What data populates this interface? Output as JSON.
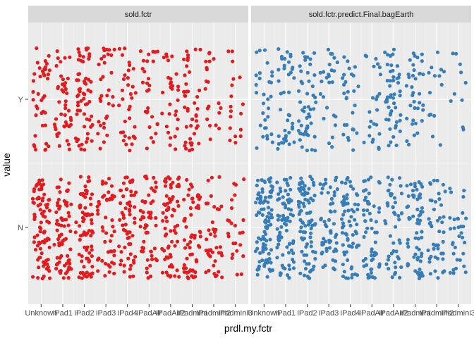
{
  "chart_data": {
    "type": "scatter",
    "jitter": true,
    "xlabel": "prdl.my.fctr",
    "ylabel": "value",
    "categories": [
      "Unknown",
      "iPad1",
      "iPad2",
      "iPad3",
      "iPad4",
      "iPadAir",
      "iPadAir2",
      "iPadmini",
      "iPadmini2",
      "iPadmini3"
    ],
    "y_levels": [
      "N",
      "Y"
    ],
    "grid": true,
    "facets": [
      {
        "label": "sold.fctr",
        "color": "#E41A1C",
        "counts": {
          "Y": [
            40,
            45,
            60,
            32,
            34,
            28,
            30,
            42,
            20,
            18
          ],
          "N": [
            85,
            70,
            75,
            48,
            60,
            52,
            65,
            58,
            40,
            24
          ]
        }
      },
      {
        "label": "sold.fctr.predict.Final.bagEarth",
        "color": "#377EB8",
        "counts": {
          "Y": [
            30,
            40,
            50,
            26,
            28,
            24,
            48,
            36,
            14,
            10
          ],
          "N": [
            95,
            75,
            85,
            54,
            66,
            56,
            47,
            64,
            46,
            32
          ]
        }
      }
    ]
  }
}
